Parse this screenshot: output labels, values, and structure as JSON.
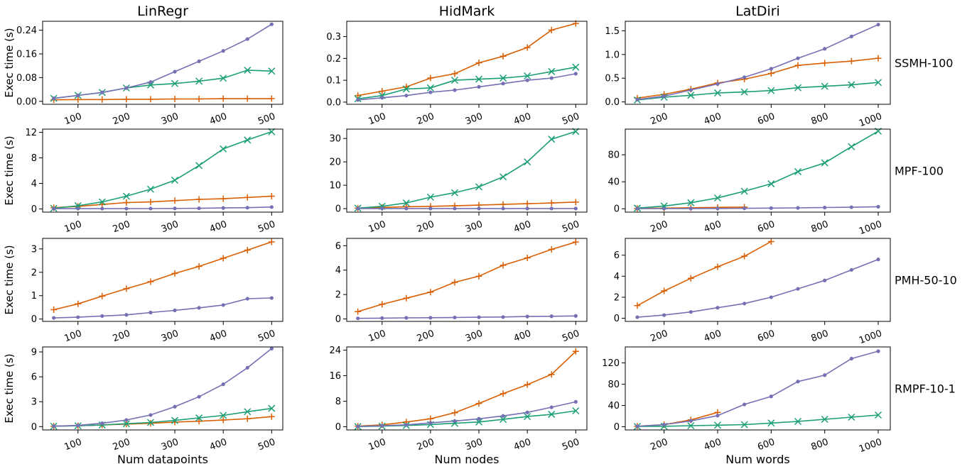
{
  "chart_data": [
    {
      "type": "line",
      "title": "LinRegr",
      "ylabel": "Exec time (s)",
      "x": [
        50,
        100,
        150,
        200,
        250,
        300,
        350,
        400,
        450,
        500
      ],
      "xlim": [
        27,
        523
      ],
      "xticks": [
        100,
        200,
        300,
        400,
        500
      ],
      "ylim": [
        -0.01,
        0.27
      ],
      "yticks": [
        {
          "value": 0,
          "label": "0.00"
        },
        0.08,
        0.16,
        0.24
      ],
      "series": [
        {
          "color": "#d95f02",
          "marker": "plus",
          "values": [
            0.005,
            0.006,
            0.006,
            0.007,
            0.007,
            0.008,
            0.008,
            0.009,
            0.009,
            0.009
          ]
        },
        {
          "color": "#1b9e77",
          "marker": "cross",
          "values": [
            0.01,
            0.02,
            0.03,
            0.045,
            0.055,
            0.06,
            0.068,
            0.078,
            0.105,
            0.102
          ]
        },
        {
          "color": "#7570b3",
          "marker": "dot",
          "values": [
            0.01,
            0.02,
            0.03,
            0.045,
            0.065,
            0.1,
            0.135,
            0.17,
            0.21,
            0.26
          ]
        }
      ]
    },
    {
      "type": "line",
      "title": "HidMark",
      "x": [
        50,
        100,
        150,
        200,
        250,
        300,
        350,
        400,
        450,
        500
      ],
      "xlim": [
        27,
        523
      ],
      "xticks": [
        100,
        200,
        300,
        400,
        500
      ],
      "ylim": [
        -0.01,
        0.37
      ],
      "yticks": [
        {
          "value": 0,
          "label": "0.0"
        },
        0.1,
        0.2,
        0.3
      ],
      "series": [
        {
          "color": "#d95f02",
          "marker": "plus",
          "values": [
            0.03,
            0.05,
            0.07,
            0.11,
            0.13,
            0.18,
            0.21,
            0.25,
            0.33,
            0.36
          ]
        },
        {
          "color": "#1b9e77",
          "marker": "cross",
          "values": [
            0.015,
            0.03,
            0.06,
            0.065,
            0.1,
            0.105,
            0.11,
            0.12,
            0.14,
            0.16
          ]
        },
        {
          "color": "#7570b3",
          "marker": "dot",
          "values": [
            0.01,
            0.02,
            0.03,
            0.045,
            0.055,
            0.07,
            0.085,
            0.1,
            0.11,
            0.13
          ]
        }
      ]
    },
    {
      "type": "line",
      "title": "LatDiri",
      "row_label": "SSMH-100",
      "x": [
        100,
        200,
        300,
        400,
        500,
        600,
        700,
        800,
        900,
        1000
      ],
      "xlim": [
        55,
        1045
      ],
      "xticks": [
        200,
        400,
        600,
        800,
        1000
      ],
      "ylim": [
        -0.05,
        1.7
      ],
      "yticks": [
        {
          "value": 0,
          "label": "0.0"
        },
        0.5,
        {
          "value": 1,
          "label": "1.0"
        },
        1.5
      ],
      "series": [
        {
          "color": "#d95f02",
          "marker": "plus",
          "values": [
            0.08,
            0.16,
            0.27,
            0.4,
            0.48,
            0.6,
            0.77,
            0.82,
            0.86,
            0.92
          ]
        },
        {
          "color": "#1b9e77",
          "marker": "cross",
          "values": [
            0.04,
            0.1,
            0.14,
            0.19,
            0.21,
            0.24,
            0.3,
            0.33,
            0.36,
            0.41
          ]
        },
        {
          "color": "#7570b3",
          "marker": "dot",
          "values": [
            0.05,
            0.12,
            0.25,
            0.38,
            0.52,
            0.7,
            0.92,
            1.12,
            1.38,
            1.63
          ]
        }
      ]
    },
    {
      "type": "line",
      "ylabel": "Exec time (s)",
      "x": [
        50,
        100,
        150,
        200,
        250,
        300,
        350,
        400,
        450,
        500
      ],
      "xlim": [
        27,
        523
      ],
      "xticks": [
        100,
        200,
        300,
        400,
        500
      ],
      "ylim": [
        -0.5,
        12.5
      ],
      "yticks": [
        0,
        4,
        8,
        12
      ],
      "series": [
        {
          "color": "#d95f02",
          "marker": "plus",
          "values": [
            0.2,
            0.4,
            0.7,
            1.0,
            1.1,
            1.3,
            1.5,
            1.6,
            1.8,
            2.0
          ]
        },
        {
          "color": "#1b9e77",
          "marker": "cross",
          "values": [
            0.1,
            0.5,
            1.1,
            2.0,
            3.1,
            4.5,
            6.8,
            9.4,
            10.8,
            12.1
          ]
        },
        {
          "color": "#7570b3",
          "marker": "dot",
          "values": [
            0.05,
            0.05,
            0.05,
            0.05,
            0.06,
            0.08,
            0.1,
            0.15,
            0.2,
            0.3
          ]
        }
      ]
    },
    {
      "type": "line",
      "x": [
        50,
        100,
        150,
        200,
        250,
        300,
        350,
        400,
        450,
        500
      ],
      "xlim": [
        27,
        523
      ],
      "xticks": [
        100,
        200,
        300,
        400,
        500
      ],
      "ylim": [
        -1.5,
        34
      ],
      "yticks": [
        0,
        10,
        20,
        30
      ],
      "series": [
        {
          "color": "#d95f02",
          "marker": "plus",
          "values": [
            0.2,
            0.5,
            0.8,
            1.0,
            1.2,
            1.5,
            1.8,
            2.1,
            2.4,
            2.8
          ]
        },
        {
          "color": "#1b9e77",
          "marker": "cross",
          "values": [
            0.2,
            1.0,
            2.4,
            4.9,
            6.8,
            9.3,
            13.6,
            20.0,
            29.7,
            33.0
          ]
        },
        {
          "color": "#7570b3",
          "marker": "dot",
          "values": [
            0.05,
            0.05,
            0.05,
            0.05,
            0.05,
            0.05,
            0.05,
            0.05,
            0.05,
            0.05
          ]
        }
      ]
    },
    {
      "type": "line",
      "row_label": "MPF-100",
      "x": [
        100,
        200,
        300,
        400,
        500,
        600,
        700,
        800,
        900,
        1000
      ],
      "xlim": [
        55,
        1045
      ],
      "xticks": [
        200,
        400,
        600,
        800,
        1000
      ],
      "ylim": [
        -5,
        118
      ],
      "yticks": [
        0,
        40,
        80
      ],
      "series": [
        {
          "color": "#d95f02",
          "marker": "plus",
          "values": [
            0.5,
            1,
            1.5,
            2,
            2.5,
            null,
            null,
            null,
            null,
            null
          ]
        },
        {
          "color": "#1b9e77",
          "marker": "cross",
          "values": [
            1,
            4,
            9,
            16,
            26,
            37,
            55,
            68,
            92,
            115
          ]
        },
        {
          "color": "#7570b3",
          "marker": "dot",
          "values": [
            0.2,
            0.3,
            0.4,
            0.5,
            0.7,
            1.0,
            1.3,
            1.8,
            2.3,
            3.0
          ]
        }
      ]
    },
    {
      "type": "line",
      "ylabel": "Exec time (s)",
      "x": [
        50,
        100,
        150,
        200,
        250,
        300,
        350,
        400,
        450,
        500
      ],
      "xlim": [
        27,
        523
      ],
      "xticks": [
        100,
        200,
        300,
        400,
        500
      ],
      "ylim": [
        -0.1,
        3.45
      ],
      "yticks": [
        0,
        1,
        2,
        3
      ],
      "series": [
        {
          "color": "#d95f02",
          "marker": "plus",
          "values": [
            0.4,
            0.65,
            0.98,
            1.3,
            1.6,
            1.95,
            2.25,
            2.6,
            2.95,
            3.3
          ]
        },
        {
          "color": "#7570b3",
          "marker": "dot",
          "values": [
            0.05,
            0.08,
            0.13,
            0.18,
            0.28,
            0.37,
            0.48,
            0.6,
            0.87,
            0.9
          ]
        }
      ]
    },
    {
      "type": "line",
      "x": [
        50,
        100,
        150,
        200,
        250,
        300,
        350,
        400,
        450,
        500
      ],
      "xlim": [
        27,
        523
      ],
      "xticks": [
        100,
        200,
        300,
        400,
        500
      ],
      "ylim": [
        -0.2,
        6.6
      ],
      "yticks": [
        0,
        2,
        4,
        6
      ],
      "series": [
        {
          "color": "#d95f02",
          "marker": "plus",
          "values": [
            0.6,
            1.2,
            1.7,
            2.2,
            3.0,
            3.5,
            4.4,
            5.0,
            5.7,
            6.3
          ]
        },
        {
          "color": "#7570b3",
          "marker": "dot",
          "values": [
            0.05,
            0.07,
            0.09,
            0.1,
            0.12,
            0.14,
            0.16,
            0.2,
            0.22,
            0.25
          ]
        }
      ]
    },
    {
      "type": "line",
      "row_label": "PMH-50-10",
      "x": [
        100,
        200,
        300,
        400,
        500,
        600,
        700,
        800,
        900,
        1000
      ],
      "xlim": [
        55,
        1045
      ],
      "xticks": [
        200,
        400,
        600,
        800,
        1000
      ],
      "ylim": [
        -0.3,
        7.6
      ],
      "yticks": [
        0,
        2,
        4,
        6
      ],
      "series": [
        {
          "color": "#d95f02",
          "marker": "plus",
          "values": [
            1.2,
            2.6,
            3.8,
            4.9,
            5.9,
            7.3,
            null,
            null,
            null,
            null
          ]
        },
        {
          "color": "#7570b3",
          "marker": "dot",
          "values": [
            0.1,
            0.3,
            0.6,
            1.0,
            1.4,
            2.0,
            2.8,
            3.6,
            4.6,
            5.6
          ]
        }
      ]
    },
    {
      "type": "line",
      "ylabel": "Exec time (s)",
      "xlabel": "Num datapoints",
      "x": [
        50,
        100,
        150,
        200,
        250,
        300,
        350,
        400,
        450,
        500
      ],
      "xlim": [
        27,
        523
      ],
      "xticks": [
        100,
        200,
        300,
        400,
        500
      ],
      "ylim": [
        -0.4,
        9.6
      ],
      "yticks": [
        0,
        3,
        6,
        9
      ],
      "series": [
        {
          "color": "#d95f02",
          "marker": "plus",
          "values": [
            0.05,
            0.1,
            0.2,
            0.3,
            0.4,
            0.55,
            0.65,
            0.8,
            0.95,
            1.2
          ]
        },
        {
          "color": "#1b9e77",
          "marker": "cross",
          "values": [
            0.05,
            0.1,
            0.2,
            0.35,
            0.5,
            0.75,
            1.05,
            1.35,
            1.8,
            2.2
          ]
        },
        {
          "color": "#7570b3",
          "marker": "dot",
          "values": [
            0.05,
            0.15,
            0.4,
            0.8,
            1.4,
            2.4,
            3.6,
            5.1,
            7.1,
            9.4
          ]
        }
      ]
    },
    {
      "type": "line",
      "xlabel": "Num nodes",
      "x": [
        50,
        100,
        150,
        200,
        250,
        300,
        350,
        400,
        450,
        500
      ],
      "xlim": [
        27,
        523
      ],
      "xticks": [
        100,
        200,
        300,
        400,
        500
      ],
      "ylim": [
        -1,
        25
      ],
      "yticks": [
        0,
        8,
        16,
        24
      ],
      "series": [
        {
          "color": "#d95f02",
          "marker": "plus",
          "values": [
            0.2,
            0.6,
            1.5,
            2.5,
            4.4,
            7.3,
            10.4,
            13.2,
            16.4,
            23.6
          ]
        },
        {
          "color": "#1b9e77",
          "marker": "cross",
          "values": [
            0.05,
            0.2,
            0.4,
            0.7,
            1.1,
            1.5,
            2.3,
            3.2,
            3.9,
            5.0
          ]
        },
        {
          "color": "#7570b3",
          "marker": "dot",
          "values": [
            0.1,
            0.3,
            0.6,
            1.2,
            1.8,
            2.5,
            3.4,
            4.5,
            6.1,
            7.8
          ]
        }
      ]
    },
    {
      "type": "line",
      "row_label": "RMPF-10-1",
      "xlabel": "Num words",
      "x": [
        100,
        200,
        300,
        400,
        500,
        600,
        700,
        800,
        900,
        1000
      ],
      "xlim": [
        55,
        1045
      ],
      "xticks": [
        200,
        400,
        600,
        800,
        1000
      ],
      "ylim": [
        -6,
        150
      ],
      "yticks": [
        0,
        40,
        80,
        120
      ],
      "series": [
        {
          "color": "#d95f02",
          "marker": "plus",
          "values": [
            1,
            4,
            13,
            27,
            null,
            null,
            null,
            null,
            null,
            null
          ]
        },
        {
          "color": "#1b9e77",
          "marker": "cross",
          "values": [
            0.5,
            1,
            2,
            3,
            4,
            7,
            10,
            14,
            18,
            22
          ]
        },
        {
          "color": "#7570b3",
          "marker": "dot",
          "values": [
            1,
            4,
            11,
            21,
            42,
            57,
            85,
            97,
            128,
            142
          ]
        }
      ]
    }
  ]
}
